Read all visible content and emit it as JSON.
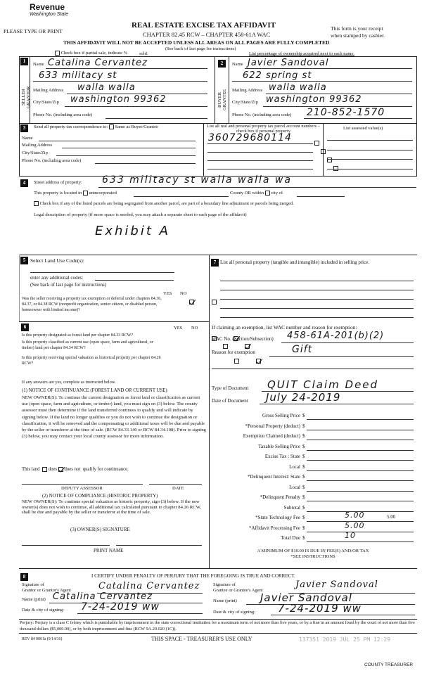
{
  "header": {
    "agency": "Revenue",
    "state": "Washington State",
    "title": "REAL ESTATE EXCISE TAX AFFIDAVIT",
    "chapter": "CHAPTER 82.45 RCW – CHAPTER 458-61A WAC",
    "please": "PLEASE TYPE OR PRINT",
    "receipt1": "This form is your receipt",
    "receipt2": "when stamped by cashier.",
    "warning": "THIS AFFIDAVIT WILL NOT BE ACCEPTED UNLESS ALL AREAS ON ALL PAGES ARE FULLY COMPLETED",
    "see_back": "(See back of last page for instructions)",
    "partial": "Check box if partial sale, indicate %",
    "sold": "sold.",
    "ownership": "List percentage of ownership acquired next to each name."
  },
  "seller": {
    "num": "1",
    "side_label": "SELLER GRANTOR",
    "name_label": "Name",
    "name": "Catalina Cervantez",
    "address_line": "633 militacy st",
    "mailing_label": "Mailing Address",
    "mailing": "walla walla",
    "city_label": "City/State/Zip",
    "city": "washington 99362",
    "phone_label": "Phone No. (including area code)",
    "phone": ""
  },
  "buyer": {
    "num": "2",
    "side_label": "BUYER GRANTEE",
    "name_label": "Name",
    "name": "Javier Sandoval",
    "address_line": "622 spring st",
    "mailing_label": "Mailing Address",
    "mailing": "walla walla",
    "city_label": "City/State/Zip",
    "city": "washington 99362",
    "phone_label": "Phone No. (including area code)",
    "phone": "210-852-1570"
  },
  "correspondence": {
    "num": "3",
    "label": "Send all property tax correspondence to:",
    "same": "Same as Buyer/Grantee",
    "name": "Name",
    "mailing": "Mailing Address",
    "city": "City/State/Zip",
    "phone": "Phone No. (including area code)"
  },
  "parcels": {
    "header": "List all real and personal property tax parcel account numbers – check box if personal property",
    "numbers": [
      "360729680114",
      "",
      "",
      ""
    ],
    "assessed_header": "List assessed value(s)"
  },
  "property": {
    "num": "4",
    "street_label": "Street address of property:",
    "street": "633 militacy st walla walla wa",
    "located": "This property is located in",
    "unincorporated": "unincorporated",
    "county": "County OR within",
    "city_of": "city of",
    "segregated": "Check box if any of the listed parcels are being segregated from another parcel, are part of a boundary line adjustment or parcels being merged.",
    "legal": "Legal description of property (if more space is needed, you may attach a separate sheet to each page of the affidavit)",
    "legal_value": "Exhibit A"
  },
  "land_use": {
    "num": "5",
    "label": "Select Land Use Code(s):",
    "additional": "enter any additional codes:",
    "see_back": "(See back of last page for instructions)",
    "yes": "YES",
    "no": "NO",
    "question": "Was the seller receiving a property tax exemption or deferral under chapters 84.36, 84.37, or 84.38 RCW (nonprofit organization, senior citizen, or disabled person, homeowner with limited income)?",
    "answer": "YES"
  },
  "section6": {
    "num": "6",
    "yes": "YES",
    "no": "NO",
    "questions": [
      {
        "text": "Is this property designated as forest land per chapter 84.33 RCW?",
        "answer": "NO"
      },
      {
        "text": "Is this property classified as current use (open space, farm and agricultural, or timber) land per chapter 84.34 RCW?",
        "answer": "NO"
      },
      {
        "text": "Is this property receiving special valuation as historical property per chapter 84.26 RCW?",
        "answer": "NO"
      }
    ],
    "if_yes": "If any answers are yes, complete as instructed below.",
    "notice1_title": "(1) NOTICE OF CONTINUANCE (FOREST LAND OR CURRENT USE)",
    "notice1": "NEW OWNER(S): To continue the current designation as forest land or classification as current use (open space, farm and agriculture, or timber) land, you must sign on (3) below. The county assessor must then determine if the land transferred continues to qualify and will indicate by signing below. If the land no longer qualifies or you do not wish to continue the designation or classification, it will be removed and the compensating or additional taxes will be due and payable by the seller or transferor at the time of sale. (RCW 84.33.140 or RCW 84.34.108). Prior to signing (3) below, you may contact your local county assessor for more information.",
    "this_land": "This land",
    "does": "does",
    "does_not": "does not",
    "qualify": "qualify for continuance.",
    "continuance": "does not",
    "deputy": "DEPUTY ASSESSOR",
    "date": "DATE",
    "notice2_title": "(2) NOTICE OF COMPLIANCE (HISTORIC PROPERTY)",
    "notice2": "NEW OWNER(S): To continue special valuation as historic property, sign (3) below. If the new owner(s) does not wish to continue, all additional tax calculated pursuant to chapter 84.26 RCW, shall be due and payable by the seller or transferor at the time of sale.",
    "owner_sig": "(3) OWNER(S) SIGNATURE",
    "print_name": "PRINT NAME"
  },
  "section7": {
    "num": "7",
    "label": "List all personal property (tangible and intangible) included in selling price.",
    "exemption_label": "If claiming an exemption, list WAC number and reason for exemption:",
    "wac_label": "WAC No. (Section/Subsection)",
    "wac": "458-61A-201(b)(2)",
    "reason_label": "Reason for exemption",
    "reason": "Gift",
    "doc_type_label": "Type of Document",
    "doc_type": "QUIT Claim Deed",
    "doc_date_label": "Date of Document",
    "doc_date": "July 24-2019"
  },
  "fees": [
    {
      "label": "Gross Selling Price",
      "value": ""
    },
    {
      "label": "*Personal Property (deduct)",
      "value": ""
    },
    {
      "label": "Exemption Claimed (deduct)",
      "value": ""
    },
    {
      "label": "Taxable Selling Price",
      "value": ""
    },
    {
      "label": "Excise Tax : State",
      "value": ""
    },
    {
      "label": "Local",
      "value": ""
    },
    {
      "label": "*Delinquent Interest: State",
      "value": ""
    },
    {
      "label": "Local",
      "value": ""
    },
    {
      "label": "*Delinquent Penalty",
      "value": ""
    },
    {
      "label": "Subtotal",
      "value": ""
    },
    {
      "label": "*State Technology Fee",
      "value": "5.00",
      "hand": "5.00"
    },
    {
      "label": "*Affidavit Processing Fee",
      "value": "",
      "hand": "5.00"
    },
    {
      "label": "Total Due",
      "value": "",
      "hand": "10"
    }
  ],
  "currency": "$",
  "minimum": "A MINIMUM OF $10.00 IS DUE IN FEE(S) AND/OR TAX",
  "see_instr": "*SEE INSTRUCTIONS",
  "signing": {
    "num": "8",
    "certify": "I CERTIFY UNDER PENALTY OF PERJURY THAT THE FOREGOING IS TRUE AND CORRECT.",
    "sig_label1": "Signature of",
    "grantor_agent": "Grantor or Grantor's Agent",
    "grantee_agent": "Grantee or Grantee's Agent",
    "name_label": "Name (print)",
    "date_label": "Date & city of signing:",
    "grantor_sig": "Catalina Cervantez",
    "grantee_sig": "Javier Sandoval",
    "grantor_name": "Catalina Cervantez",
    "grantee_name": "Javier Sandoval",
    "grantor_date": "7-24-2019 ww",
    "grantee_date": "7-24-2019 ww"
  },
  "footer": {
    "perjury": "Perjury: Perjury is a class C felony which is punishable by imprisonment in the state correctional institution for a maximum term of not more than five years, or by a fine in an amount fixed by the court of not more than five thousand dollars ($5,000.00), or by both imprisonment and fine (RCW 9A.20.020 (1C)).",
    "rev": "REV 84 0001a (9/14/16)",
    "treasurer_use": "THIS SPACE - TREASURER'S USE ONLY",
    "stamp": "137351 2019 JUL 25 PM 12:29",
    "county_treasurer": "COUNTY TREASURER"
  }
}
